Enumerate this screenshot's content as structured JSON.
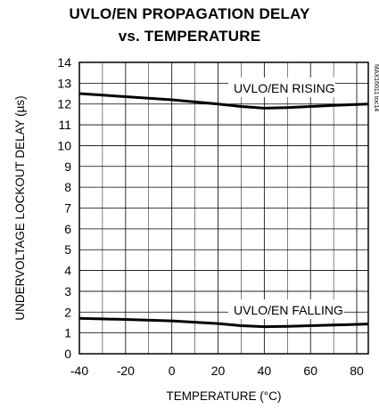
{
  "chart_data": {
    "type": "line",
    "title": "UVLO/EN PROPAGATION DELAY",
    "subtitle": "vs. TEMPERATURE",
    "xlabel": "TEMPERATURE (°C)",
    "ylabel": "UNDERVOLTAGE LOCKOUT DELAY (µs)",
    "xlim": [
      -40,
      85
    ],
    "ylim": [
      0,
      14
    ],
    "xticks": [
      -40,
      -20,
      0,
      20,
      40,
      60,
      80
    ],
    "yticks": [
      0,
      1,
      2,
      3,
      4,
      5,
      6,
      7,
      8,
      9,
      10,
      11,
      12,
      13,
      14
    ],
    "grid": true,
    "series": [
      {
        "name": "UVLO/EN RISING",
        "x": [
          -40,
          -20,
          0,
          20,
          30,
          40,
          50,
          60,
          70,
          85
        ],
        "y": [
          12.5,
          12.35,
          12.2,
          12.0,
          11.88,
          11.8,
          11.83,
          11.88,
          11.93,
          12.0
        ]
      },
      {
        "name": "UVLO/EN FALLING",
        "x": [
          -40,
          -20,
          0,
          20,
          30,
          40,
          50,
          60,
          70,
          85
        ],
        "y": [
          1.7,
          1.65,
          1.58,
          1.45,
          1.35,
          1.3,
          1.32,
          1.35,
          1.38,
          1.43
        ]
      }
    ],
    "annotations": [
      "UVLO/EN RISING",
      "UVLO/EN FALLING"
    ],
    "side_label": "MAX16011 toc14"
  }
}
